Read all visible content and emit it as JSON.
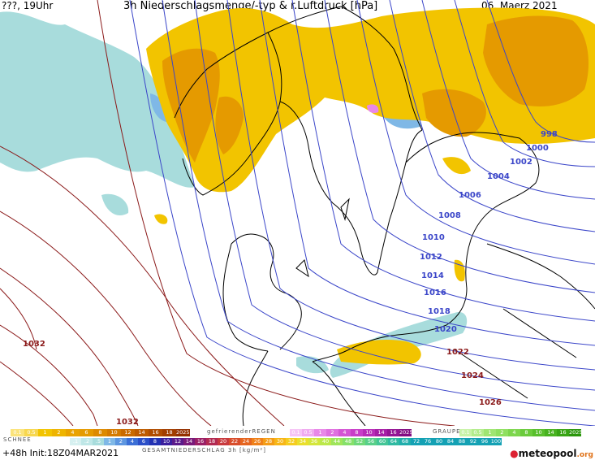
{
  "header": {
    "left": "???, 19Uhr",
    "title": "3h Niederschlagsmenge/-typ & r.Luftdruck [hPa]",
    "date": "06. Maerz 2021"
  },
  "isobars": {
    "blue_labels": [
      "998",
      "1000",
      "1002",
      "1004",
      "1006",
      "1008",
      "1010",
      "1012",
      "1014",
      "1016",
      "1018",
      "1020"
    ],
    "red_labels": [
      "1032",
      "1022",
      "1024",
      "1026",
      "1032"
    ]
  },
  "legend": {
    "rain_scale": [
      "0.1",
      "0.5",
      "1",
      "2",
      "4",
      "6",
      "8",
      "10",
      "12",
      "14",
      "16",
      "18",
      "2025+"
    ],
    "freezing_label": "gefrierenderREGEN",
    "freezing_scale": [
      "0.1",
      "0.5",
      "1",
      "2",
      "4",
      "8",
      "10",
      "14",
      "16",
      "2025+"
    ],
    "graupel_label": "GRAUPEL",
    "graupel_scale": [
      "0.1",
      "0.5",
      "1",
      "2",
      "4",
      "8",
      "10",
      "14",
      "16",
      "2025+"
    ],
    "snow_label": "SCHNEE",
    "snow_scale": [
      ".1",
      ".2",
      ".5",
      "1",
      "2",
      "4",
      "6",
      "8",
      "10",
      "12",
      "14",
      "16",
      "18",
      "20",
      "22",
      "24",
      "26",
      "28",
      "30",
      "32",
      "34",
      "36",
      "40",
      "44",
      "48",
      "52",
      "56",
      "60",
      "64",
      "68",
      "72",
      "76",
      "80",
      "84",
      "88",
      "92",
      "96",
      "100"
    ],
    "total_label": "GESAMTNIEDERSCHLAG 3h [kg/m²]"
  },
  "footer": {
    "init": "+48h Init:18Z04MAR2021",
    "logo_main": "meteopool",
    "logo_tld": ".org"
  },
  "colors": {
    "rain": "#f2c400",
    "rain_dark": "#e59a00",
    "snow": "#a8dcdc",
    "snow_mid": "#7fb8e6",
    "freezing": "#e888e8",
    "graupel": "#8fe060",
    "isobar_blue": "#3b46c9",
    "isobar_red": "#8b1a1a",
    "coast": "#000000"
  }
}
